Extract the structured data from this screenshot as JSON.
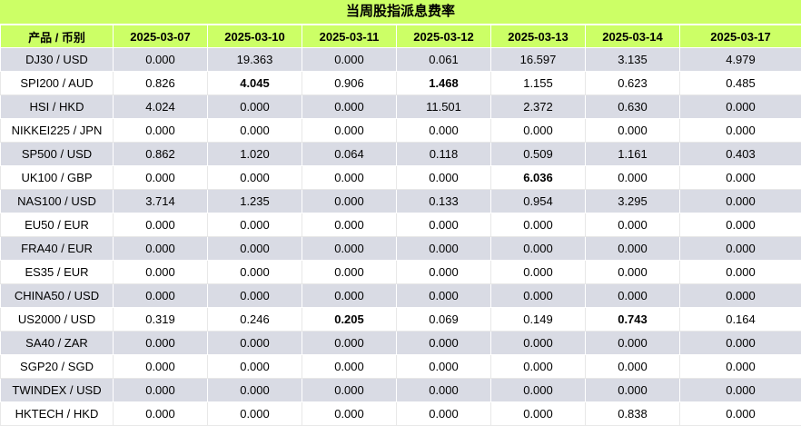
{
  "title": "当周股指派息费率",
  "headers": [
    "产品 / 币别",
    "2025-03-07",
    "2025-03-10",
    "2025-03-11",
    "2025-03-12",
    "2025-03-13",
    "2025-03-14",
    "2025-03-17"
  ],
  "rows": [
    {
      "product": "DJ30 / USD",
      "values": [
        "0.000",
        "19.363",
        "0.000",
        "0.061",
        "16.597",
        "3.135",
        "4.979"
      ],
      "bold": []
    },
    {
      "product": "SPI200 / AUD",
      "values": [
        "0.826",
        "4.045",
        "0.906",
        "1.468",
        "1.155",
        "0.623",
        "0.485"
      ],
      "bold": [
        1,
        3
      ]
    },
    {
      "product": "HSI / HKD",
      "values": [
        "4.024",
        "0.000",
        "0.000",
        "11.501",
        "2.372",
        "0.630",
        "0.000"
      ],
      "bold": []
    },
    {
      "product": "NIKKEI225 / JPN",
      "values": [
        "0.000",
        "0.000",
        "0.000",
        "0.000",
        "0.000",
        "0.000",
        "0.000"
      ],
      "bold": []
    },
    {
      "product": "SP500 / USD",
      "values": [
        "0.862",
        "1.020",
        "0.064",
        "0.118",
        "0.509",
        "1.161",
        "0.403"
      ],
      "bold": []
    },
    {
      "product": "UK100 / GBP",
      "values": [
        "0.000",
        "0.000",
        "0.000",
        "0.000",
        "6.036",
        "0.000",
        "0.000"
      ],
      "bold": [
        4
      ]
    },
    {
      "product": "NAS100 / USD",
      "values": [
        "3.714",
        "1.235",
        "0.000",
        "0.133",
        "0.954",
        "3.295",
        "0.000"
      ],
      "bold": []
    },
    {
      "product": "EU50 / EUR",
      "values": [
        "0.000",
        "0.000",
        "0.000",
        "0.000",
        "0.000",
        "0.000",
        "0.000"
      ],
      "bold": []
    },
    {
      "product": "FRA40 / EUR",
      "values": [
        "0.000",
        "0.000",
        "0.000",
        "0.000",
        "0.000",
        "0.000",
        "0.000"
      ],
      "bold": []
    },
    {
      "product": "ES35 / EUR",
      "values": [
        "0.000",
        "0.000",
        "0.000",
        "0.000",
        "0.000",
        "0.000",
        "0.000"
      ],
      "bold": []
    },
    {
      "product": "CHINA50 / USD",
      "values": [
        "0.000",
        "0.000",
        "0.000",
        "0.000",
        "0.000",
        "0.000",
        "0.000"
      ],
      "bold": []
    },
    {
      "product": "US2000 / USD",
      "values": [
        "0.319",
        "0.246",
        "0.205",
        "0.069",
        "0.149",
        "0.743",
        "0.164"
      ],
      "bold": [
        2,
        5
      ]
    },
    {
      "product": "SA40 / ZAR",
      "values": [
        "0.000",
        "0.000",
        "0.000",
        "0.000",
        "0.000",
        "0.000",
        "0.000"
      ],
      "bold": []
    },
    {
      "product": "SGP20 / SGD",
      "values": [
        "0.000",
        "0.000",
        "0.000",
        "0.000",
        "0.000",
        "0.000",
        "0.000"
      ],
      "bold": []
    },
    {
      "product": "TWINDEX / USD",
      "values": [
        "0.000",
        "0.000",
        "0.000",
        "0.000",
        "0.000",
        "0.000",
        "0.000"
      ],
      "bold": []
    },
    {
      "product": "HKTECH / HKD",
      "values": [
        "0.000",
        "0.000",
        "0.000",
        "0.000",
        "0.000",
        "0.838",
        "0.000"
      ],
      "bold": []
    }
  ]
}
